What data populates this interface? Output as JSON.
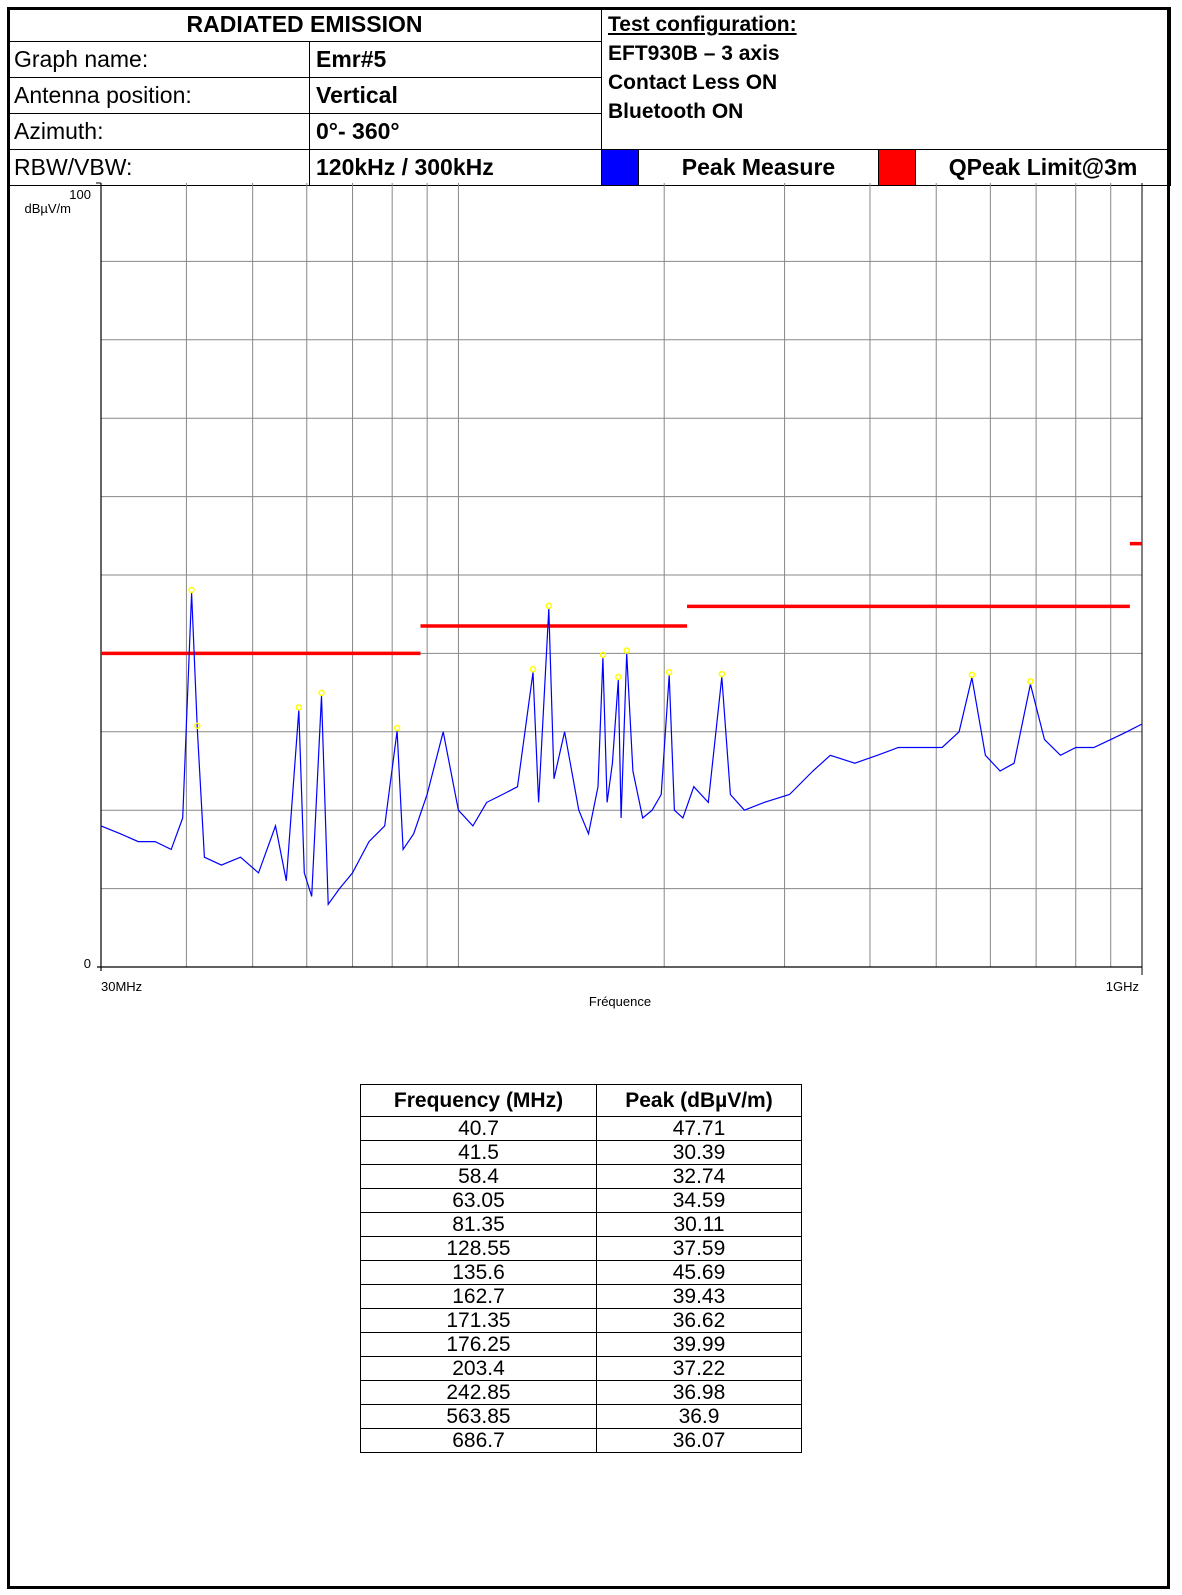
{
  "header": {
    "title": "RADIATED EMISSION",
    "rows": [
      {
        "label": "Graph name:",
        "value": "Emr#5"
      },
      {
        "label": "Antenna position:",
        "value": "Vertical"
      },
      {
        "label": "Azimuth:",
        "value": "0°- 360°"
      },
      {
        "label": "RBW/VBW:",
        "value": "120kHz / 300kHz"
      }
    ],
    "config_title": "Test configuration:",
    "config_lines": [
      "EFT930B – 3 axis",
      "Contact Less ON",
      "Bluetooth ON"
    ],
    "legend": [
      {
        "label": "Peak Measure",
        "color": "#0000ff"
      },
      {
        "label": "QPeak Limit@3m",
        "color": "#ff0000"
      }
    ]
  },
  "chart_data": {
    "type": "line",
    "xlabel": "Fréquence",
    "ylabel": "dBµV/m",
    "x_scale": "log",
    "xlim_mhz": [
      30,
      1000
    ],
    "ylim": [
      0,
      100
    ],
    "x_tick_labels": [
      "30MHz",
      "1GHz"
    ],
    "y_tick_labels": [
      "0",
      "100"
    ],
    "grid": true,
    "colors": {
      "measure": "#0000ff",
      "limit": "#ff0000",
      "markers": "#ffff00"
    },
    "series": [
      {
        "name": "Peak Measure",
        "points": [
          [
            30,
            18
          ],
          [
            32,
            17
          ],
          [
            34,
            16
          ],
          [
            36,
            16
          ],
          [
            38,
            15
          ],
          [
            39.5,
            19
          ],
          [
            40.7,
            47.71
          ],
          [
            41.5,
            30.39
          ],
          [
            42.5,
            14
          ],
          [
            45,
            13
          ],
          [
            48,
            14
          ],
          [
            51,
            12
          ],
          [
            54,
            18
          ],
          [
            56,
            11
          ],
          [
            58.4,
            32.74
          ],
          [
            59.5,
            12
          ],
          [
            61,
            9
          ],
          [
            63.05,
            34.59
          ],
          [
            64.5,
            8
          ],
          [
            67,
            10
          ],
          [
            70,
            12
          ],
          [
            74,
            16
          ],
          [
            78,
            18
          ],
          [
            81.35,
            30.11
          ],
          [
            83,
            15
          ],
          [
            86,
            17
          ],
          [
            90,
            22
          ],
          [
            95,
            30
          ],
          [
            100,
            20
          ],
          [
            105,
            18
          ],
          [
            110,
            21
          ],
          [
            116,
            22
          ],
          [
            122,
            23
          ],
          [
            128.55,
            37.59
          ],
          [
            131,
            21
          ],
          [
            135.6,
            45.69
          ],
          [
            138,
            24
          ],
          [
            143,
            30
          ],
          [
            150,
            20
          ],
          [
            155,
            17
          ],
          [
            160,
            23
          ],
          [
            162.7,
            39.43
          ],
          [
            165,
            21
          ],
          [
            168,
            26
          ],
          [
            171.35,
            36.62
          ],
          [
            173,
            19
          ],
          [
            176.25,
            39.99
          ],
          [
            180,
            25
          ],
          [
            186,
            19
          ],
          [
            192,
            20
          ],
          [
            198,
            22
          ],
          [
            203.4,
            37.22
          ],
          [
            207,
            20
          ],
          [
            213,
            19
          ],
          [
            221,
            23
          ],
          [
            232,
            21
          ],
          [
            242.85,
            36.98
          ],
          [
            250,
            22
          ],
          [
            262,
            20
          ],
          [
            280,
            21
          ],
          [
            305,
            22
          ],
          [
            330,
            25
          ],
          [
            350,
            27
          ],
          [
            380,
            26
          ],
          [
            410,
            27
          ],
          [
            440,
            28
          ],
          [
            470,
            28
          ],
          [
            510,
            28
          ],
          [
            540,
            30
          ],
          [
            563.85,
            36.9
          ],
          [
            590,
            27
          ],
          [
            620,
            25
          ],
          [
            650,
            26
          ],
          [
            686.7,
            36.07
          ],
          [
            720,
            29
          ],
          [
            760,
            27
          ],
          [
            800,
            28
          ],
          [
            850,
            28
          ],
          [
            900,
            29
          ],
          [
            950,
            30
          ],
          [
            1000,
            31
          ]
        ]
      },
      {
        "name": "QPeak Limit@3m",
        "segments": [
          {
            "x": [
              30,
              88
            ],
            "y": [
              40,
              40
            ]
          },
          {
            "x": [
              88,
              216
            ],
            "y": [
              43.5,
              43.5
            ]
          },
          {
            "x": [
              216,
              960
            ],
            "y": [
              46,
              46
            ]
          },
          {
            "x": [
              960,
              1000
            ],
            "y": [
              54,
              54
            ]
          }
        ]
      }
    ],
    "peaks": [
      {
        "frequency": 40.7,
        "peak": 47.71
      },
      {
        "frequency": 41.5,
        "peak": 30.39
      },
      {
        "frequency": 58.4,
        "peak": 32.74
      },
      {
        "frequency": 63.05,
        "peak": 34.59
      },
      {
        "frequency": 81.35,
        "peak": 30.11
      },
      {
        "frequency": 128.55,
        "peak": 37.59
      },
      {
        "frequency": 135.6,
        "peak": 45.69
      },
      {
        "frequency": 162.7,
        "peak": 39.43
      },
      {
        "frequency": 171.35,
        "peak": 36.62
      },
      {
        "frequency": 176.25,
        "peak": 39.99
      },
      {
        "frequency": 203.4,
        "peak": 37.22
      },
      {
        "frequency": 242.85,
        "peak": 36.98
      },
      {
        "frequency": 563.85,
        "peak": 36.9
      },
      {
        "frequency": 686.7,
        "peak": 36.07
      }
    ]
  },
  "peak_table": {
    "headers": [
      "Frequency (MHz)",
      "Peak (dBµV/m)"
    ],
    "rows": [
      [
        "40.7",
        "47.71"
      ],
      [
        "41.5",
        "30.39"
      ],
      [
        "58.4",
        "32.74"
      ],
      [
        "63.05",
        "34.59"
      ],
      [
        "81.35",
        "30.11"
      ],
      [
        "128.55",
        "37.59"
      ],
      [
        "135.6",
        "45.69"
      ],
      [
        "162.7",
        "39.43"
      ],
      [
        "171.35",
        "36.62"
      ],
      [
        "176.25",
        "39.99"
      ],
      [
        "203.4",
        "37.22"
      ],
      [
        "242.85",
        "36.98"
      ],
      [
        "563.85",
        "36.9"
      ],
      [
        "686.7",
        "36.07"
      ]
    ]
  }
}
